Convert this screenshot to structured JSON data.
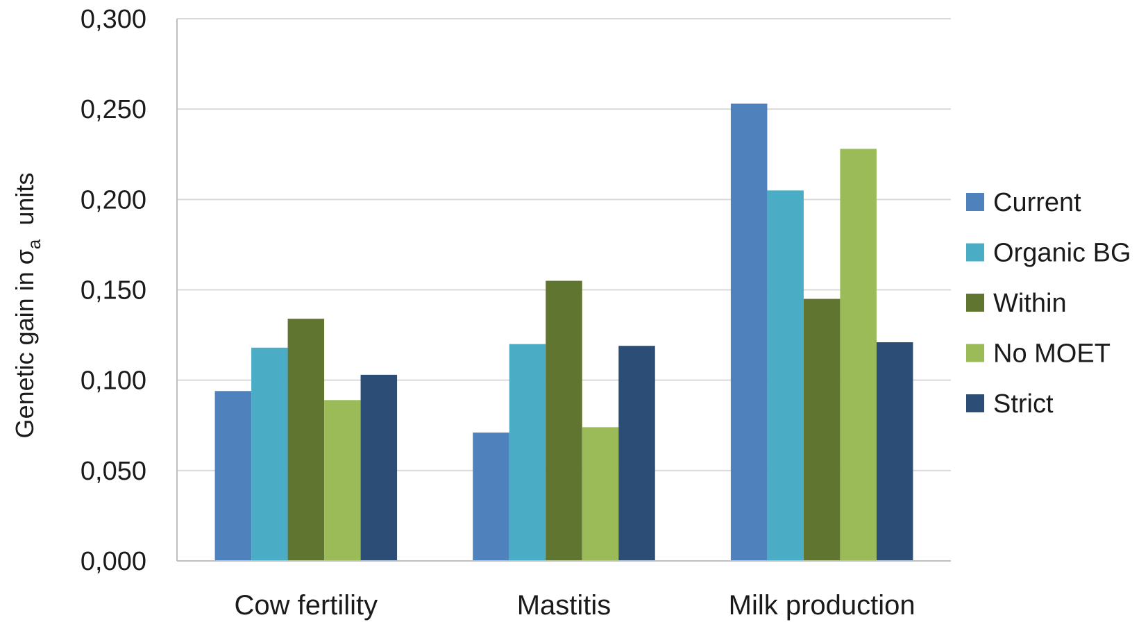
{
  "chart_data": {
    "type": "bar",
    "categories": [
      "Cow fertility",
      "Mastitis",
      "Milk production"
    ],
    "series": [
      {
        "name": "Current",
        "color": "#4f81bd",
        "values": [
          0.094,
          0.071,
          0.253
        ]
      },
      {
        "name": "Organic BG",
        "color": "#4bacc6",
        "values": [
          0.118,
          0.12,
          0.205
        ]
      },
      {
        "name": "Within",
        "color": "#5f7530",
        "values": [
          0.134,
          0.155,
          0.145
        ]
      },
      {
        "name": "No MOET",
        "color": "#9bbb59",
        "values": [
          0.089,
          0.074,
          0.228
        ]
      },
      {
        "name": "Strict",
        "color": "#2c4d75",
        "values": [
          0.103,
          0.119,
          0.121
        ]
      }
    ],
    "ylabel": {
      "main": "Genetic gain in σ",
      "subscript": "a",
      "suffix": "  units"
    },
    "ylim": [
      0,
      0.3
    ],
    "yticks": [
      "0,000",
      "0,050",
      "0,100",
      "0,150",
      "0,200",
      "0,250",
      "0,300"
    ],
    "grid": true,
    "legend_position": "right"
  }
}
